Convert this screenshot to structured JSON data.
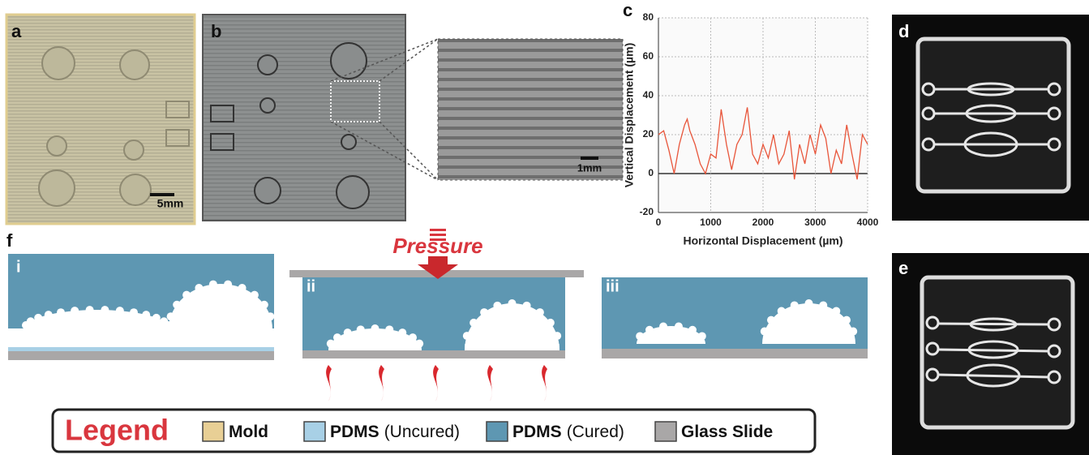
{
  "panels": {
    "a": "a",
    "b": "b",
    "c": "c",
    "d": "d",
    "e": "e",
    "f": "f"
  },
  "scale_bars": {
    "a": "5mm",
    "inset": "1mm"
  },
  "steps": [
    "i",
    "ii",
    "iii"
  ],
  "pressure": "Pressure",
  "legend": {
    "title": "Legend",
    "items": [
      {
        "bold": "Mold",
        "color": "#e8cf95"
      },
      {
        "bold": "PDMS",
        "note": "(Uncured)",
        "color": "#a8d0e6"
      },
      {
        "bold": "PDMS",
        "note": "(Cured)",
        "color": "#5e97b2"
      },
      {
        "bold": "Glass Slide",
        "color": "#a9a7a7"
      }
    ]
  },
  "chart_data": {
    "type": "line",
    "x_label": "Horizontal Displacement (µm)",
    "y_label": "Vertical Displacement (µm)",
    "color": "#e8553a",
    "x": [
      0,
      100,
      200,
      300,
      400,
      500,
      550,
      600,
      700,
      800,
      900,
      1000,
      1100,
      1200,
      1300,
      1400,
      1500,
      1600,
      1700,
      1800,
      1900,
      2000,
      2100,
      2200,
      2300,
      2400,
      2500,
      2600,
      2700,
      2800,
      2900,
      3000,
      3100,
      3200,
      3300,
      3400,
      3500,
      3600,
      3700,
      3800,
      3900,
      4000
    ],
    "values": [
      20,
      22,
      12,
      0,
      15,
      25,
      28,
      22,
      15,
      5,
      0,
      10,
      8,
      33,
      15,
      2,
      15,
      20,
      34,
      10,
      5,
      15,
      8,
      20,
      5,
      10,
      22,
      -3,
      15,
      5,
      20,
      10,
      25,
      18,
      0,
      12,
      5,
      25,
      10,
      -3,
      20,
      15
    ],
    "xlim": [
      0,
      4000
    ],
    "ylim": [
      -20,
      80
    ],
    "xticks": [
      0,
      1000,
      2000,
      3000,
      4000
    ],
    "yticks": [
      -20,
      0,
      20,
      40,
      60,
      80
    ],
    "grid": true
  }
}
